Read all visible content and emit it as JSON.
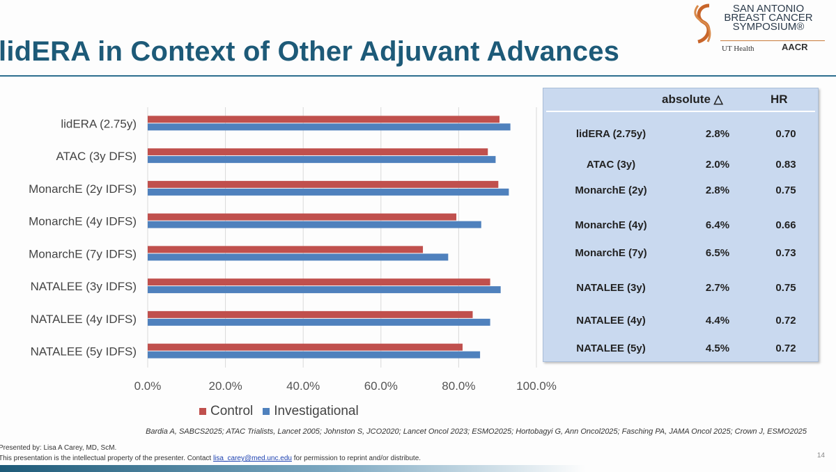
{
  "title": "lidERA in Context of Other Adjuvant Advances",
  "logo": {
    "line1": "SAN ANTONIO",
    "line2": "BREAST CANCER",
    "line3": "SYMPOSIUM®",
    "ut": "UT Health",
    "aacr": "AACR"
  },
  "chart_data": {
    "type": "bar",
    "orientation": "horizontal",
    "categories": [
      "lidERA (2.75y)",
      "ATAC (3y DFS)",
      "MonarchE (2y IDFS)",
      "MonarchE (4y IDFS)",
      "MonarchE (7y IDFS)",
      "NATALEE (3y IDFS)",
      "NATALEE (4y IDFS)",
      "NATALEE (5y IDFS)"
    ],
    "series": [
      {
        "name": "Control",
        "color": "#c0504d",
        "values": [
          90.5,
          87.5,
          90.2,
          79.4,
          70.8,
          88.1,
          83.6,
          81.0
        ]
      },
      {
        "name": "Investigational",
        "color": "#4f81bd",
        "values": [
          93.3,
          89.5,
          92.9,
          85.8,
          77.3,
          90.8,
          88.1,
          85.5
        ]
      }
    ],
    "xlim": [
      0,
      100
    ],
    "xticks": [
      "0.0%",
      "20.0%",
      "40.0%",
      "60.0%",
      "80.0%",
      "100.0%"
    ],
    "grid": true,
    "legend": "bottom"
  },
  "table": {
    "headers": [
      "",
      "absolute △",
      "HR"
    ],
    "rows": [
      {
        "label": "lidERA (2.75y)",
        "abs": "2.8%",
        "hr": "0.70"
      },
      {
        "label": "ATAC (3y)",
        "abs": "2.0%",
        "hr": "0.83"
      },
      {
        "label": "MonarchE (2y)",
        "abs": "2.8%",
        "hr": "0.75"
      },
      {
        "label": "MonarchE (4y)",
        "abs": "6.4%",
        "hr": "0.66"
      },
      {
        "label": "MonarchE (7y)",
        "abs": "6.5%",
        "hr": "0.73"
      },
      {
        "label": "NATALEE (3y)",
        "abs": "2.7%",
        "hr": "0.75"
      },
      {
        "label": "NATALEE (4y)",
        "abs": "4.4%",
        "hr": "0.72"
      },
      {
        "label": "NATALEE (5y)",
        "abs": "4.5%",
        "hr": "0.72"
      }
    ]
  },
  "references": "Bardia A, SABCS2025; ATAC Trialists, Lancet 2005; Johnston S, JCO2020; Lancet Oncol 2023; ESMO2025; Hortobagyi G, Ann Oncol2025; Fasching PA, JAMA Oncol 2025; Crown J, ESMO2025",
  "footer": {
    "presenter": "Presented by: Lisa A Carey, MD, ScM.",
    "notice_pre": "This presentation is the intellectual property of the presenter. Contact",
    "email": "lisa_carey@med.unc.edu",
    "notice_post": "for permission to reprint and/or distribute.",
    "page": "14"
  }
}
